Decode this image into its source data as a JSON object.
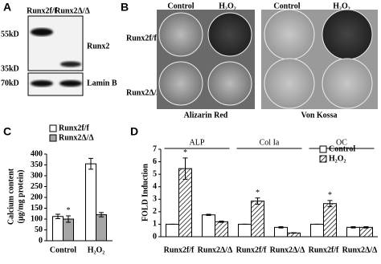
{
  "panel_a": {
    "label": "A",
    "lanes": [
      "Runx2f/f",
      "Runx2Δ/Δ"
    ],
    "markers": [
      "55kD",
      "35kD",
      "70kD"
    ],
    "proteins": [
      "Runx2",
      "Lamin B"
    ]
  },
  "panel_b": {
    "label": "B",
    "columns": [
      "Control",
      "H₂O₂",
      "Control",
      "H₂O₂"
    ],
    "rows": [
      "Runx2f/f",
      "Runx2Δ/Δ"
    ],
    "stains": [
      "Alizarin Red",
      "Von Kossa"
    ]
  },
  "chart_data": [
    {
      "type": "bar",
      "panel": "C",
      "y_label": [
        "Calcium content",
        "(μg/mg protein)"
      ],
      "categories": [
        "Control",
        "H₂O₂"
      ],
      "series": [
        {
          "name": "Runx2f/f",
          "color": "#ffffff",
          "values": [
            112,
            355
          ],
          "errors": [
            10,
            25
          ]
        },
        {
          "name": "Runx2Δ/Δ",
          "color": "#a6a6a6",
          "values": [
            100,
            120
          ],
          "errors": [
            15,
            10
          ]
        }
      ],
      "ylim": [
        0,
        400
      ],
      "yticks": [
        0,
        50,
        100,
        150,
        200,
        250,
        300,
        350,
        400
      ],
      "annotations": [
        "*"
      ]
    },
    {
      "type": "bar",
      "panel": "D",
      "y_label": [
        "FOLD Induction"
      ],
      "group_labels": [
        "ALP",
        "Col Ia",
        "OC"
      ],
      "categories": [
        "Runx2f/f",
        "Runx2Δ/Δ",
        "Runx2f/f",
        "Runx2Δ/Δ",
        "Runx2f/f",
        "Runx2Δ/Δ"
      ],
      "series": [
        {
          "name": "Control",
          "color": "#ffffff",
          "values": [
            1,
            1.75,
            1,
            0.75,
            1,
            0.75
          ],
          "errors": [
            0,
            0.05,
            0,
            0.05,
            0,
            0.05
          ]
        },
        {
          "name": "H₂O₂",
          "color": "#ffffff",
          "pattern": "hatch",
          "values": [
            5.45,
            1.2,
            2.85,
            0.3,
            2.65,
            0.75
          ],
          "errors": [
            0.85,
            0.05,
            0.25,
            0.02,
            0.25,
            0.05
          ]
        }
      ],
      "ylim": [
        0,
        7
      ],
      "yticks": [
        0,
        1,
        2,
        3,
        4,
        5,
        6,
        7
      ],
      "annotations": [
        "*",
        "*",
        "*"
      ]
    }
  ]
}
